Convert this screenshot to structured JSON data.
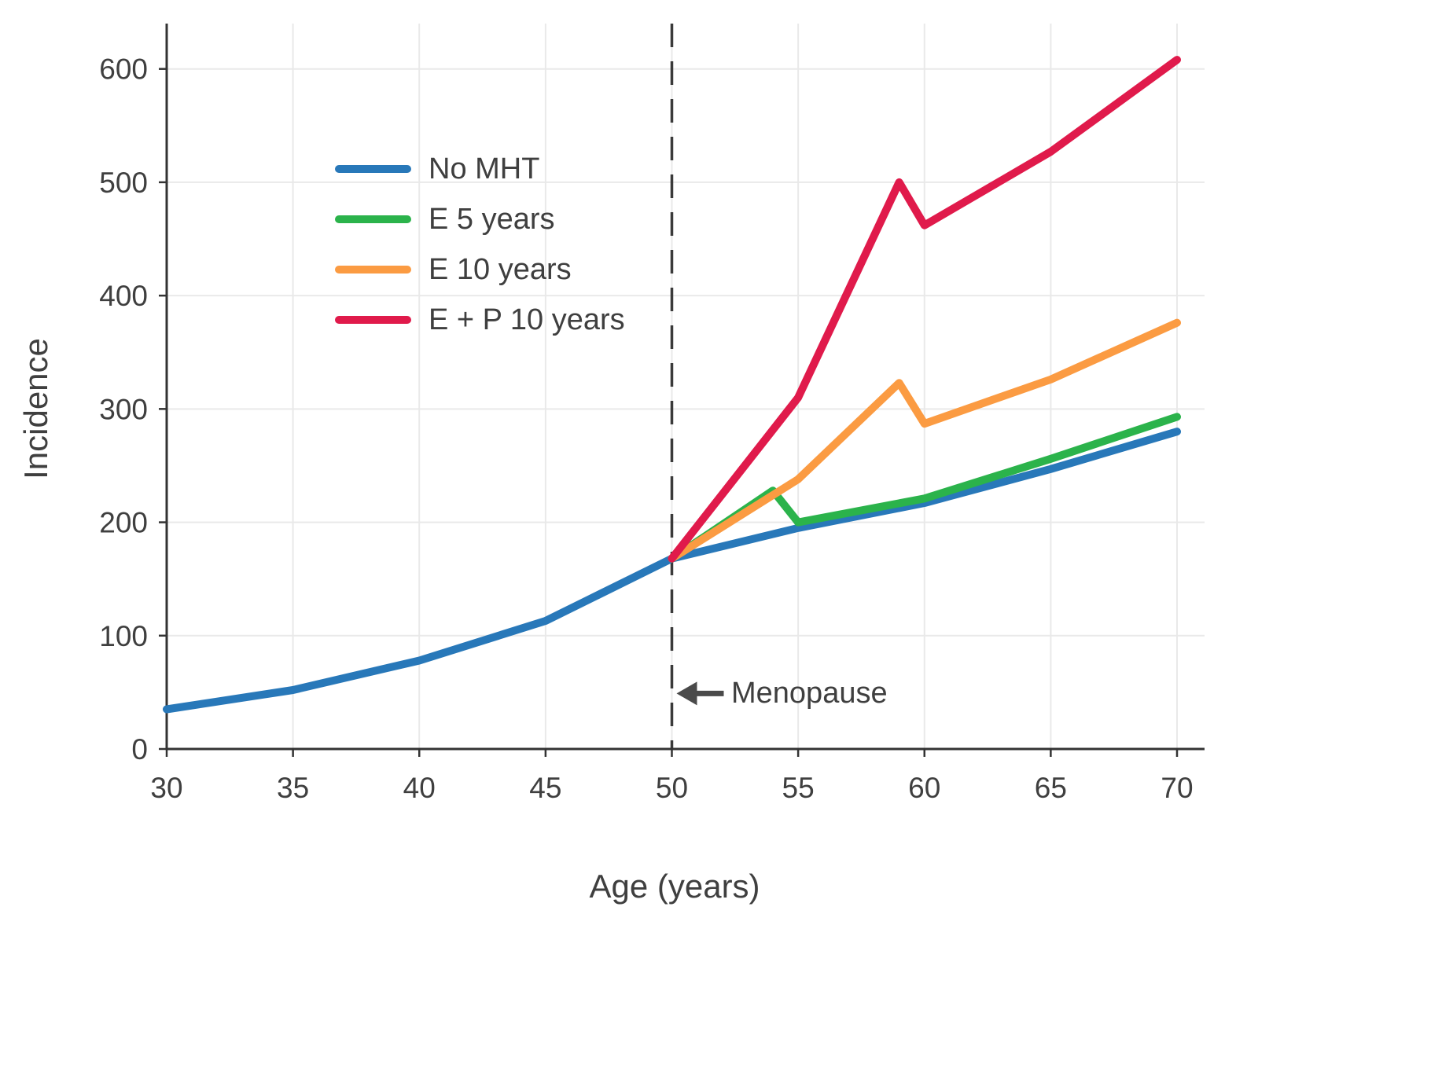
{
  "page": {
    "background": "#ffffff"
  },
  "chart_data": {
    "type": "line",
    "title": "",
    "xlabel": "Age (years)",
    "ylabel": "Incidence",
    "xlim": [
      30,
      70
    ],
    "ylim": [
      0,
      640
    ],
    "xticks": [
      30,
      35,
      40,
      45,
      50,
      55,
      60,
      65,
      70
    ],
    "yticks": [
      0,
      100,
      200,
      300,
      400,
      500,
      600
    ],
    "grid": true,
    "legend_position": "upper-left",
    "axis_color": "#333333",
    "grid_color": "#e9e9e9",
    "text_color": "#3f3f3f",
    "menopause_line": {
      "x": 50,
      "label": "Menopause",
      "style": "dashed",
      "color": "#3a3a3a",
      "arrow_y": 49
    },
    "series": [
      {
        "name": "No MHT",
        "color": "#2878b9",
        "x": [
          30,
          35,
          40,
          45,
          50,
          55,
          60,
          65,
          70
        ],
        "y": [
          35,
          52,
          78,
          113,
          168,
          195,
          217,
          247,
          280
        ]
      },
      {
        "name": "E 5 years",
        "color": "#2bb34b",
        "x": [
          50,
          54,
          55,
          60,
          65,
          70
        ],
        "y": [
          168,
          228,
          200,
          221,
          256,
          293
        ]
      },
      {
        "name": "E 10 years",
        "color": "#fb9b42",
        "x": [
          50,
          55,
          59,
          60,
          65,
          70
        ],
        "y": [
          168,
          238,
          323,
          287,
          326,
          376
        ]
      },
      {
        "name": "E + P 10 years",
        "color": "#e01a4b",
        "x": [
          50,
          55,
          59,
          60,
          65,
          70
        ],
        "y": [
          168,
          310,
          500,
          462,
          527,
          608
        ]
      }
    ]
  }
}
